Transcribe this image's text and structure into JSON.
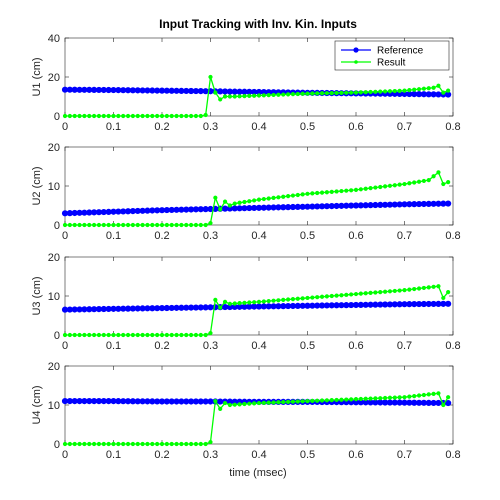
{
  "chart_data": {
    "type": "line",
    "title": "Input Tracking with Inv. Kin. Inputs",
    "xlabel": "time (msec)",
    "xlim": [
      0,
      0.8
    ],
    "xticks": [
      0,
      0.1,
      0.2,
      0.3,
      0.4,
      0.5,
      0.6,
      0.7,
      0.8
    ],
    "grid": false,
    "legend": {
      "placement": "top-right",
      "entries": [
        "Reference",
        "Result"
      ]
    },
    "colors": {
      "Reference": "#0000ff",
      "Result": "#00ff00"
    },
    "panels": [
      {
        "ylabel": "U1 (cm)",
        "ylim": [
          0,
          40
        ],
        "yticks": [
          0,
          20,
          40
        ],
        "series": [
          {
            "name": "Reference",
            "x": [
              0.0,
              0.1,
              0.2,
              0.3,
              0.4,
              0.5,
              0.6,
              0.7,
              0.79
            ],
            "y": [
              13.5,
              13.3,
              13.0,
              12.7,
              12.3,
              11.9,
              11.6,
              11.3,
              11.0
            ]
          },
          {
            "name": "Result",
            "x": [
              0.0,
              0.28,
              0.29,
              0.3,
              0.31,
              0.32,
              0.33,
              0.35,
              0.4,
              0.5,
              0.6,
              0.7,
              0.76,
              0.77,
              0.78,
              0.79
            ],
            "y": [
              0,
              0,
              0.5,
              20.0,
              12.0,
              8.5,
              10.0,
              10.0,
              10.5,
              11.5,
              12.0,
              13.0,
              14.5,
              15.5,
              12.0,
              13.0
            ]
          }
        ]
      },
      {
        "ylabel": "U2 (cm)",
        "ylim": [
          0,
          20
        ],
        "yticks": [
          0,
          10,
          20
        ],
        "series": [
          {
            "name": "Reference",
            "x": [
              0.0,
              0.1,
              0.2,
              0.3,
              0.4,
              0.5,
              0.6,
              0.7,
              0.79
            ],
            "y": [
              3.0,
              3.4,
              3.8,
              4.1,
              4.4,
              4.7,
              5.0,
              5.3,
              5.5
            ]
          },
          {
            "name": "Result",
            "x": [
              0.0,
              0.29,
              0.3,
              0.31,
              0.32,
              0.33,
              0.34,
              0.35,
              0.4,
              0.5,
              0.6,
              0.7,
              0.75,
              0.77,
              0.78,
              0.79
            ],
            "y": [
              0,
              0,
              0.5,
              7.0,
              4.0,
              6.0,
              5.0,
              5.5,
              6.5,
              8.0,
              9.0,
              10.5,
              11.5,
              13.5,
              10.5,
              11.0
            ]
          }
        ]
      },
      {
        "ylabel": "U3 (cm)",
        "ylim": [
          0,
          20
        ],
        "yticks": [
          0,
          10,
          20
        ],
        "series": [
          {
            "name": "Reference",
            "x": [
              0.0,
              0.1,
              0.2,
              0.3,
              0.4,
              0.5,
              0.6,
              0.7,
              0.79
            ],
            "y": [
              6.5,
              6.7,
              6.9,
              7.1,
              7.3,
              7.5,
              7.7,
              7.9,
              8.0
            ]
          },
          {
            "name": "Result",
            "x": [
              0.0,
              0.29,
              0.3,
              0.31,
              0.32,
              0.33,
              0.34,
              0.4,
              0.5,
              0.6,
              0.7,
              0.77,
              0.78,
              0.79
            ],
            "y": [
              0,
              0,
              0.5,
              9.0,
              7.0,
              8.5,
              8.0,
              8.5,
              9.5,
              10.5,
              11.5,
              12.5,
              9.5,
              11.0
            ]
          }
        ]
      },
      {
        "ylabel": "U4 (cm)",
        "ylim": [
          0,
          20
        ],
        "yticks": [
          0,
          10,
          20
        ],
        "series": [
          {
            "name": "Reference",
            "x": [
              0.0,
              0.1,
              0.2,
              0.3,
              0.4,
              0.5,
              0.6,
              0.7,
              0.79
            ],
            "y": [
              11.0,
              11.0,
              10.9,
              10.9,
              10.8,
              10.8,
              10.7,
              10.6,
              10.5
            ]
          },
          {
            "name": "Result",
            "x": [
              0.0,
              0.29,
              0.3,
              0.31,
              0.32,
              0.33,
              0.34,
              0.4,
              0.5,
              0.6,
              0.7,
              0.77,
              0.78,
              0.79
            ],
            "y": [
              0,
              0,
              0.5,
              11.0,
              9.0,
              10.5,
              10.0,
              10.5,
              11.0,
              11.5,
              12.0,
              13.0,
              10.0,
              12.0
            ]
          }
        ]
      }
    ]
  }
}
